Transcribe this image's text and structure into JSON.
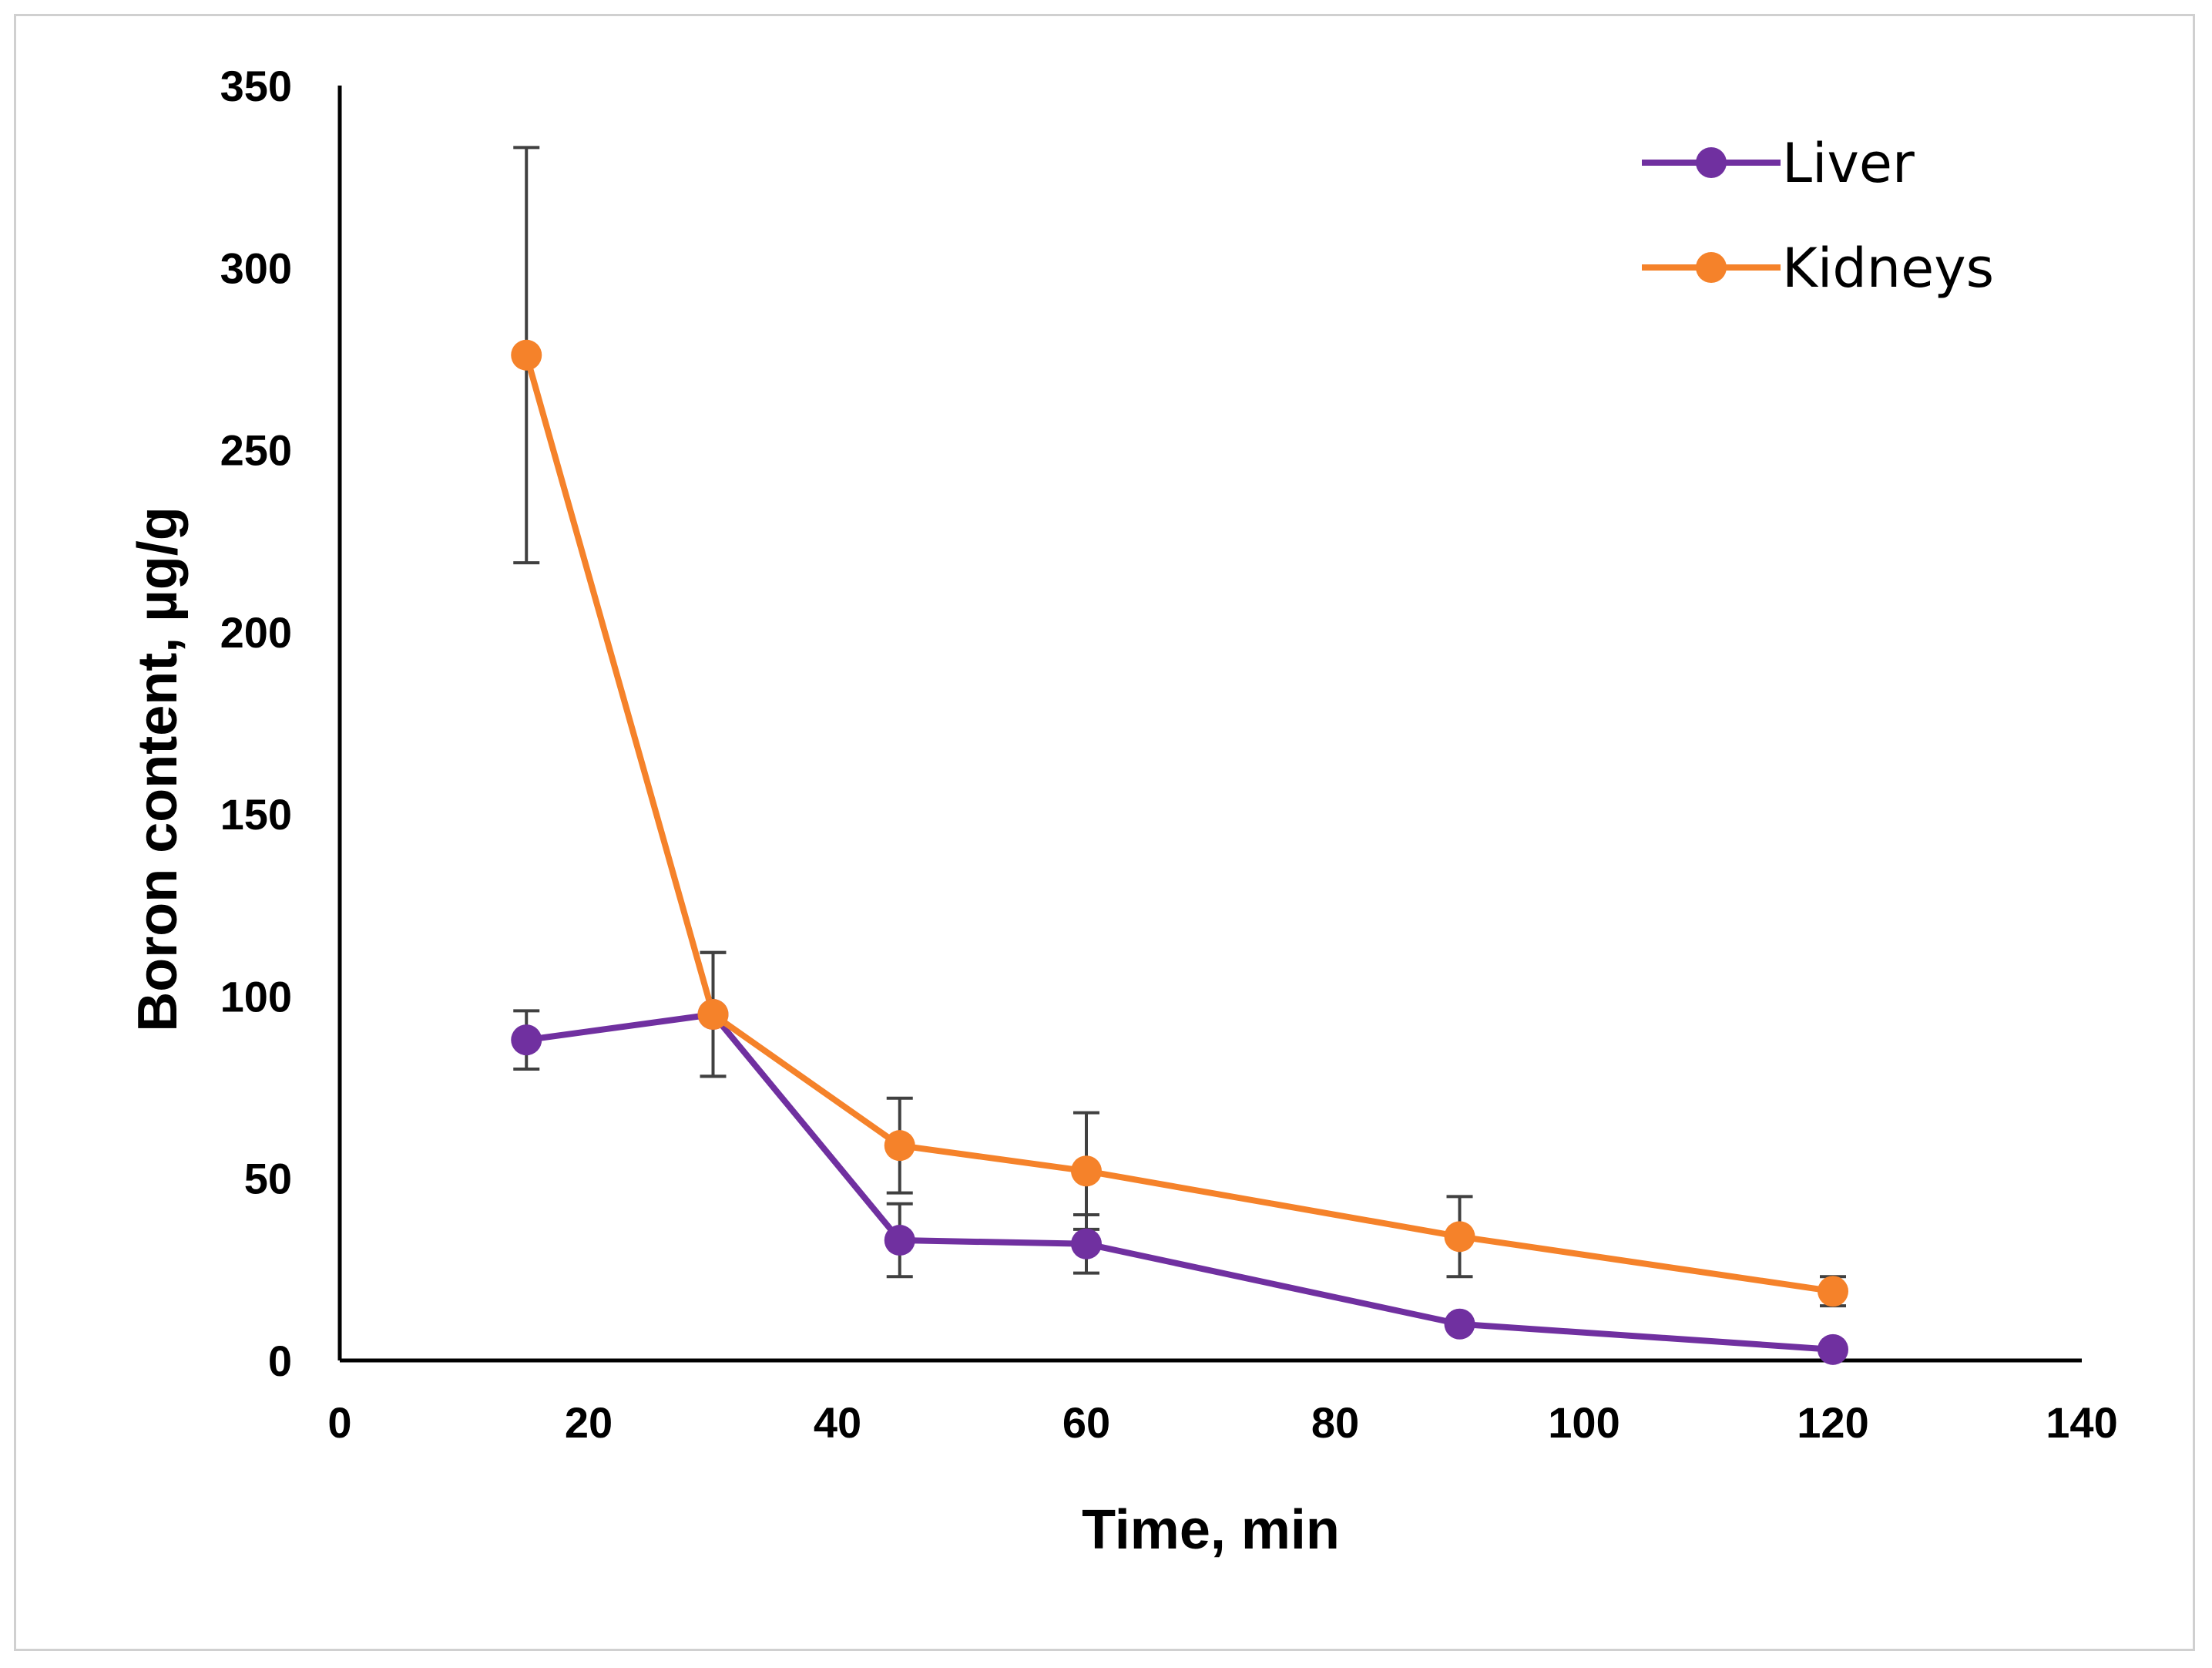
{
  "chart_data": {
    "type": "line",
    "title": "",
    "xlabel": "Time, min",
    "ylabel": "Boron content, µg/g",
    "xlim": [
      0,
      140
    ],
    "ylim": [
      0,
      350
    ],
    "xticks": [
      0,
      20,
      40,
      60,
      80,
      100,
      120,
      140
    ],
    "yticks": [
      0,
      50,
      100,
      150,
      200,
      250,
      300,
      350
    ],
    "xtick_labels": [
      "0",
      "20",
      "40",
      "60",
      "80",
      "100",
      "120",
      "140"
    ],
    "ytick_labels": [
      "0",
      "50",
      "100",
      "150",
      "200",
      "250",
      "300",
      "350"
    ],
    "grid": false,
    "legend_position": "top-right",
    "x": [
      15,
      30,
      45,
      60,
      90,
      120
    ],
    "series": [
      {
        "name": "Liver",
        "color": "#7030a0",
        "values": [
          88,
          95,
          33,
          32,
          10,
          3
        ],
        "error": [
          8,
          17,
          10,
          8,
          0,
          0
        ]
      },
      {
        "name": "Kidneys",
        "color": "#f5822a",
        "values": [
          276,
          95,
          59,
          52,
          34,
          19
        ],
        "error": [
          57,
          17,
          13,
          16,
          11,
          4
        ]
      }
    ],
    "axis_color": "#000000",
    "errorbar_color": "#404040"
  }
}
